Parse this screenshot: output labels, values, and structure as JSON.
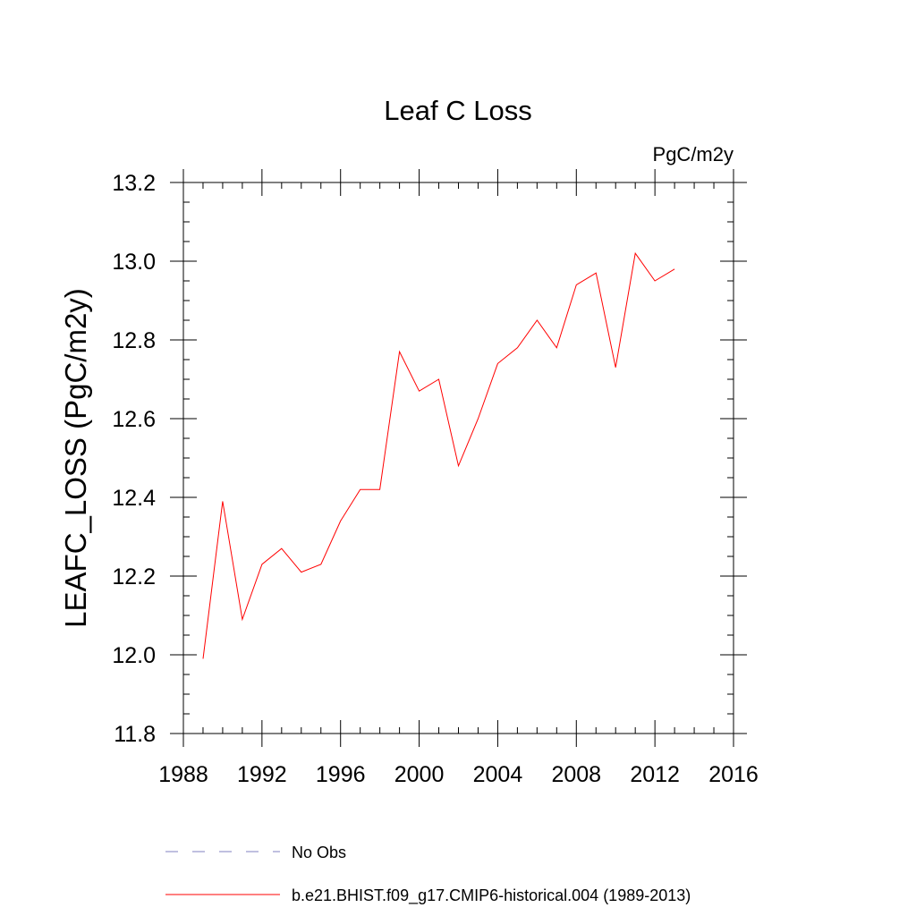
{
  "chart_data": {
    "type": "line",
    "title": "Leaf C Loss",
    "units_label": "PgC/m2y",
    "xlabel": "",
    "ylabel": "LEAFC_LOSS  (PgC/m2y)",
    "xlim": [
      1988,
      2016
    ],
    "ylim": [
      11.8,
      13.2
    ],
    "x_major_ticks": [
      1988,
      1992,
      1996,
      2000,
      2004,
      2008,
      2012,
      2016
    ],
    "x_tick_labels": [
      "1988",
      "1992",
      "1996",
      "2000",
      "2004",
      "2008",
      "2012",
      "2016"
    ],
    "x_minor_step": 1,
    "y_major_ticks": [
      11.8,
      12.0,
      12.2,
      12.4,
      12.6,
      12.8,
      13.0,
      13.2
    ],
    "y_tick_labels": [
      "11.8",
      "12.0",
      "12.2",
      "12.4",
      "12.6",
      "12.8",
      "13.0",
      "13.2"
    ],
    "y_minor_step": 0.05,
    "grid": false,
    "legend_position": "bottom",
    "series": [
      {
        "name": "b.e21.BHIST.f09_g17.CMIP6-historical.004 (1989-2013)",
        "color": "#ff0000",
        "style": "solid",
        "x": [
          1989,
          1990,
          1991,
          1992,
          1993,
          1994,
          1995,
          1996,
          1997,
          1998,
          1999,
          2000,
          2001,
          2002,
          2003,
          2004,
          2005,
          2006,
          2007,
          2008,
          2009,
          2010,
          2011,
          2012,
          2013
        ],
        "y": [
          11.99,
          12.39,
          12.09,
          12.23,
          12.27,
          12.21,
          12.23,
          12.34,
          12.42,
          12.42,
          12.77,
          12.67,
          12.7,
          12.48,
          12.6,
          12.74,
          12.78,
          12.85,
          12.78,
          12.94,
          12.97,
          12.73,
          13.02,
          12.95,
          12.98
        ]
      }
    ],
    "legend": [
      {
        "label": "No Obs",
        "color": "#8080c0",
        "style": "dashed"
      },
      {
        "label": "b.e21.BHIST.f09_g17.CMIP6-historical.004 (1989-2013)",
        "color": "#ff0000",
        "style": "solid"
      }
    ]
  }
}
